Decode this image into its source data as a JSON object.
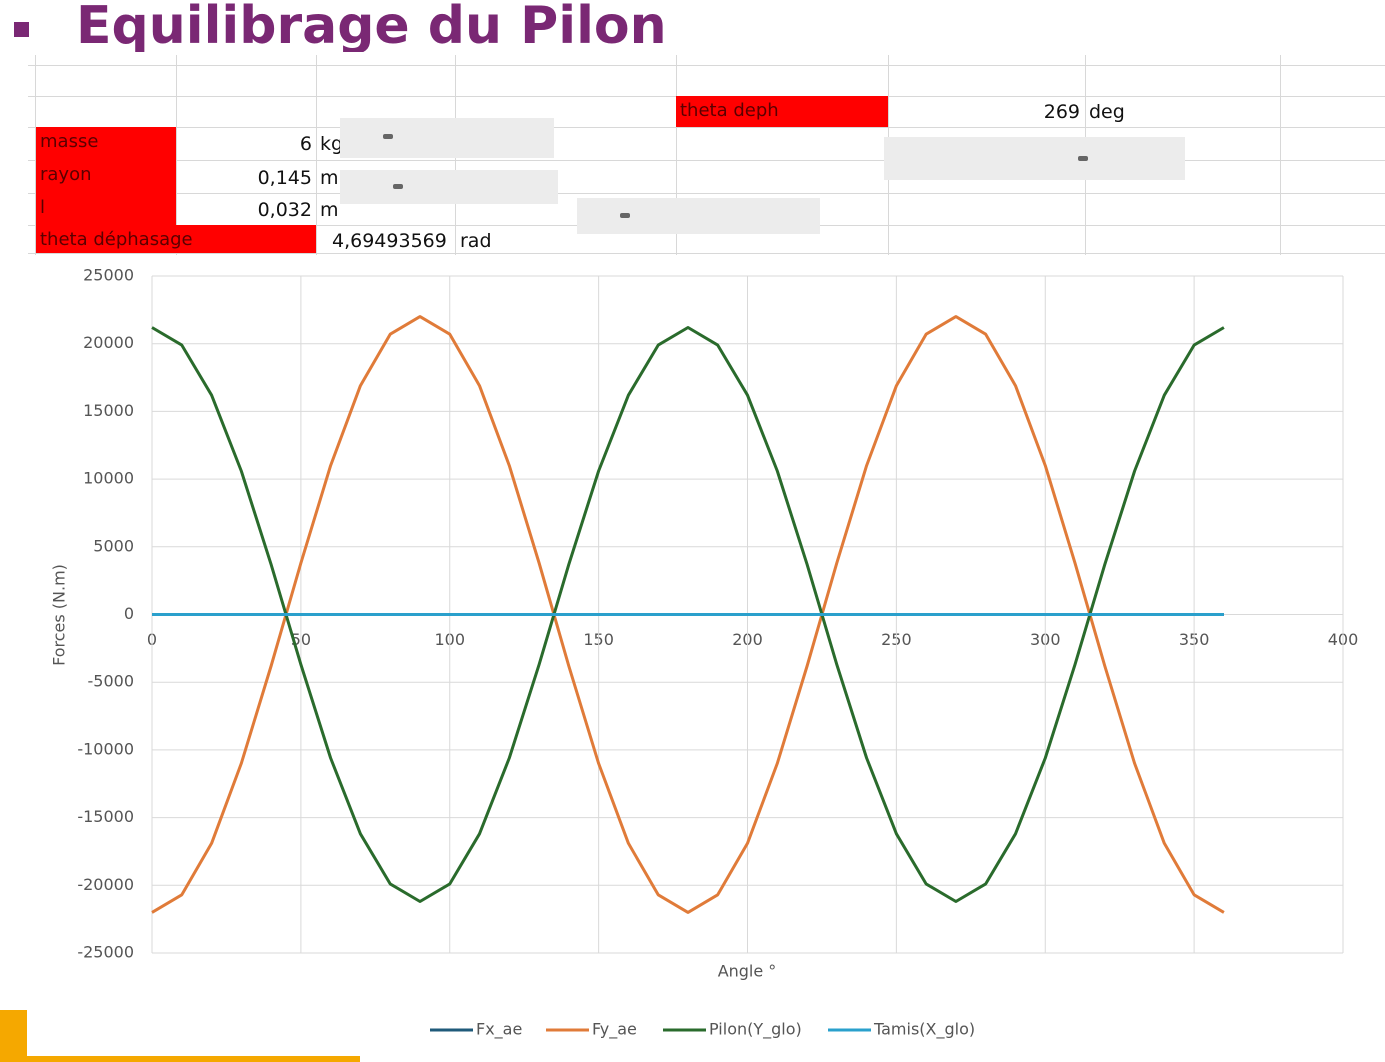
{
  "header": {
    "title": "Equilibrage du Pilon"
  },
  "table": {
    "theta_deph": {
      "label": "theta deph",
      "value": "269",
      "unit": "deg"
    },
    "rows": [
      {
        "label": "masse",
        "value": "6",
        "unit": "kg"
      },
      {
        "label": "rayon",
        "value": "0,145",
        "unit": "m"
      },
      {
        "label": "l",
        "value": "0,032",
        "unit": "m"
      },
      {
        "label": "theta déphasage",
        "value": "4,69493569",
        "unit": "rad"
      }
    ]
  },
  "chart_data": {
    "type": "line",
    "x_label": "Angle °",
    "y_label": "Forces (N.m)",
    "x": [
      0,
      10,
      20,
      30,
      40,
      50,
      60,
      70,
      80,
      90,
      100,
      110,
      120,
      130,
      140,
      150,
      160,
      170,
      180,
      190,
      200,
      210,
      220,
      230,
      240,
      250,
      260,
      270,
      280,
      290,
      300,
      310,
      320,
      330,
      340,
      350,
      360
    ],
    "series": [
      {
        "name": "Fx_ae",
        "color": "#1f5a7a",
        "values": [
          0,
          0,
          0,
          0,
          0,
          0,
          0,
          0,
          0,
          0,
          0,
          0,
          0,
          0,
          0,
          0,
          0,
          0,
          0,
          0,
          0,
          0,
          0,
          0,
          0,
          0,
          0,
          0,
          0,
          0,
          0,
          0,
          0,
          0,
          0,
          0,
          0
        ]
      },
      {
        "name": "Fy_ae",
        "color": "#e07b39",
        "values": [
          -22000,
          -20700,
          -16900,
          -11000,
          -3800,
          3800,
          11000,
          16900,
          20700,
          22000,
          20700,
          16900,
          11000,
          3800,
          -3800,
          -11000,
          -16900,
          -20700,
          -22000,
          -20700,
          -16900,
          -11000,
          -3800,
          3800,
          11000,
          16900,
          20700,
          22000,
          20700,
          16900,
          11000,
          3800,
          -3800,
          -11000,
          -16900,
          -20700,
          -22000
        ]
      },
      {
        "name": "Pilon(Y_glo)",
        "color": "#2a6b2c",
        "values": [
          21200,
          19900,
          16200,
          10600,
          3700,
          -3700,
          -10600,
          -16200,
          -19900,
          -21200,
          -19900,
          -16200,
          -10600,
          -3700,
          3700,
          10600,
          16200,
          19900,
          21200,
          19900,
          16200,
          10600,
          3700,
          -3700,
          -10600,
          -16200,
          -19900,
          -21200,
          -19900,
          -16200,
          -10600,
          -3700,
          3700,
          10600,
          16200,
          19900,
          21200
        ]
      },
      {
        "name": "Tamis(X_glo)",
        "color": "#2aa0cc",
        "values": [
          0,
          0,
          0,
          0,
          0,
          0,
          0,
          0,
          0,
          0,
          0,
          0,
          0,
          0,
          0,
          0,
          0,
          0,
          0,
          0,
          0,
          0,
          0,
          0,
          0,
          0,
          0,
          0,
          0,
          0,
          0,
          0,
          0,
          0,
          0,
          0,
          0
        ]
      }
    ],
    "xlim": [
      0,
      400
    ],
    "xticks": [
      0,
      50,
      100,
      150,
      200,
      250,
      300,
      350,
      400
    ],
    "ylim": [
      -25000,
      25000
    ],
    "yticks": [
      -25000,
      -20000,
      -15000,
      -10000,
      -5000,
      0,
      5000,
      10000,
      15000,
      20000,
      25000
    ],
    "grid": true,
    "legend": "bottom"
  }
}
